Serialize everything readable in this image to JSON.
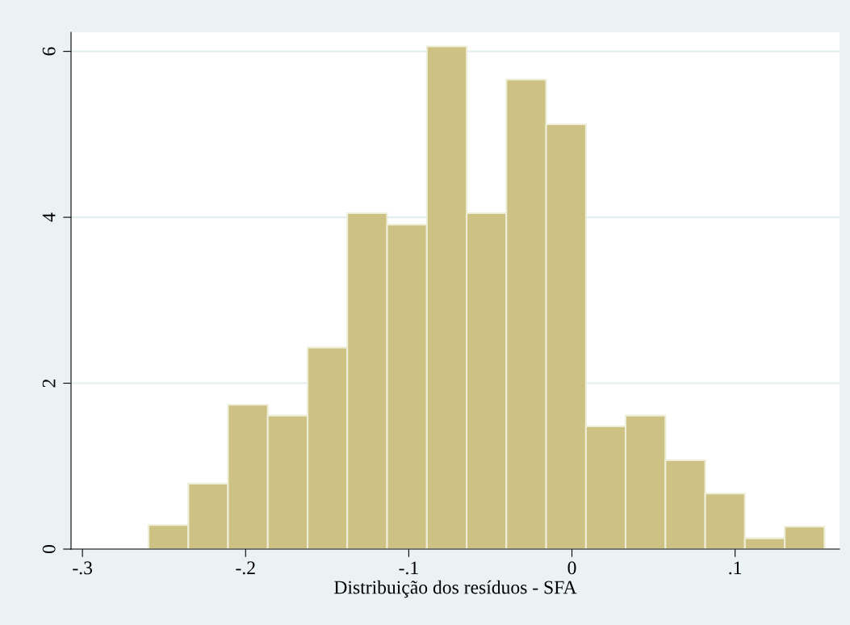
{
  "chart_data": {
    "type": "histogram",
    "xlabel": "Distribuição dos resíduos - SFA",
    "bins": [
      -0.2595,
      -0.2351,
      -0.2108,
      -0.1864,
      -0.162,
      -0.1377,
      -0.1133,
      -0.0889,
      -0.0645,
      -0.0402,
      -0.0158,
      0.0086,
      0.0329,
      0.0573,
      0.0817,
      0.106,
      0.1304,
      0.1548
    ],
    "values": [
      0.29,
      0.79,
      1.74,
      1.61,
      2.43,
      4.05,
      3.91,
      6.06,
      4.05,
      5.66,
      5.12,
      1.48,
      1.61,
      1.07,
      0.67,
      0.13,
      0.27
    ],
    "color": "#cdc283",
    "xlim": [
      -0.307,
      0.164
    ],
    "ylim": [
      0,
      6.23
    ],
    "xticks": [
      {
        "value": -0.3,
        "label": "-.3"
      },
      {
        "value": -0.2,
        "label": "-.2"
      },
      {
        "value": -0.1,
        "label": "-.1"
      },
      0,
      {
        "value": 0.1,
        "label": ".1"
      }
    ],
    "yticks": [
      0,
      2,
      4,
      6
    ],
    "grid": "y"
  }
}
